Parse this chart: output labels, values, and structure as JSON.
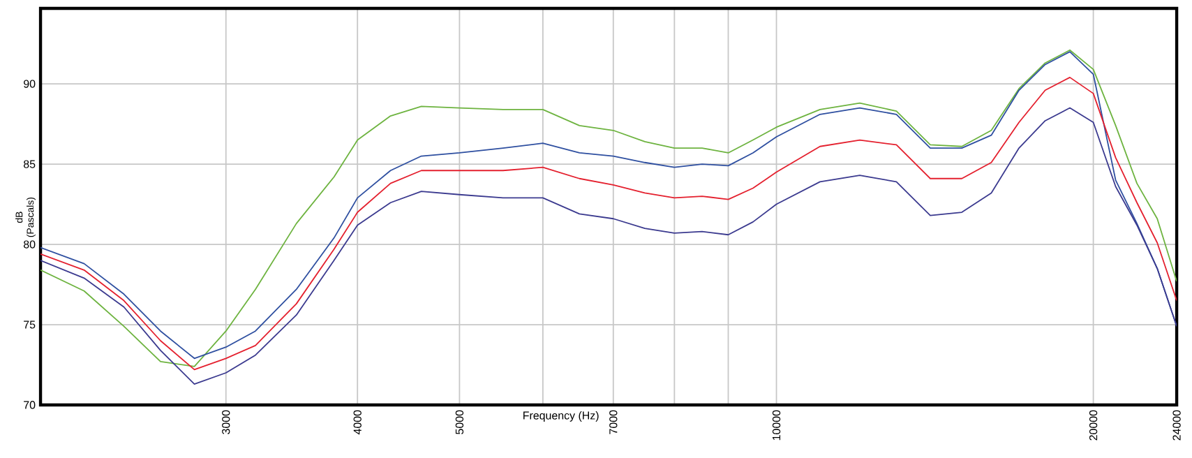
{
  "chart_data": {
    "type": "line",
    "xlabel": "Frequency (Hz)",
    "ylabel": "dB (Pascals)",
    "log": "x",
    "x": [
      2000,
      2200,
      2400,
      2600,
      2800,
      3000,
      3200,
      3500,
      3800,
      4000,
      4300,
      4600,
      5000,
      5500,
      6000,
      6500,
      7000,
      7500,
      8000,
      8500,
      9000,
      9500,
      10000,
      11000,
      12000,
      13000,
      14000,
      15000,
      16000,
      17000,
      18000,
      19000,
      20000,
      21000,
      22000,
      23000,
      24000
    ],
    "series": [
      {
        "color": "#6db33f",
        "values": [
          78.4,
          77.1,
          74.9,
          72.7,
          72.4,
          74.6,
          77.2,
          81.3,
          84.2,
          86.5,
          88.0,
          88.6,
          88.5,
          88.4,
          88.4,
          87.4,
          87.1,
          86.4,
          86.0,
          86.0,
          85.7,
          86.5,
          87.3,
          88.4,
          88.8,
          88.3,
          86.2,
          86.1,
          87.1,
          89.7,
          91.3,
          92.1,
          90.9,
          87.4,
          83.8,
          81.6,
          77.7
        ]
      },
      {
        "color": "#2e4fa0",
        "values": [
          79.8,
          78.8,
          76.9,
          74.6,
          72.9,
          73.6,
          74.6,
          77.2,
          80.4,
          82.9,
          84.6,
          85.5,
          85.7,
          86.0,
          86.3,
          85.7,
          85.5,
          85.1,
          84.8,
          85.0,
          84.9,
          85.7,
          86.7,
          88.1,
          88.5,
          88.1,
          86.0,
          86.0,
          86.8,
          89.6,
          91.2,
          92.0,
          90.6,
          84.0,
          81.3,
          78.5,
          74.9
        ]
      },
      {
        "color": "#e4202e",
        "values": [
          79.4,
          78.4,
          76.5,
          74.0,
          72.2,
          72.9,
          73.7,
          76.3,
          79.7,
          82.0,
          83.8,
          84.6,
          84.6,
          84.6,
          84.8,
          84.1,
          83.7,
          83.2,
          82.9,
          83.0,
          82.8,
          83.5,
          84.5,
          86.1,
          86.5,
          86.2,
          84.1,
          84.1,
          85.1,
          87.6,
          89.6,
          90.4,
          89.4,
          85.4,
          82.6,
          80.1,
          76.5
        ]
      },
      {
        "color": "#3b3a8f",
        "values": [
          79.0,
          77.9,
          76.1,
          73.4,
          71.3,
          72.0,
          73.1,
          75.6,
          79.0,
          81.2,
          82.6,
          83.3,
          83.1,
          82.9,
          82.9,
          81.9,
          81.6,
          81.0,
          80.7,
          80.8,
          80.6,
          81.4,
          82.5,
          83.9,
          84.3,
          83.9,
          81.8,
          82.0,
          83.2,
          86.0,
          87.7,
          88.5,
          87.6,
          83.6,
          81.2,
          78.5,
          74.9
        ]
      }
    ],
    "xlim": [
      2000,
      24000
    ],
    "ylim": [
      70,
      94.7
    ],
    "xticks": [
      3000,
      4000,
      5000,
      {
        "value": 6000,
        "label": null
      },
      7000,
      {
        "value": 8000,
        "label": null
      },
      {
        "value": 9000,
        "label": null
      },
      10000,
      20000,
      24000
    ],
    "yticks": [
      70,
      75,
      80,
      85,
      90
    ],
    "grid": true,
    "marker": "none",
    "line_style": "solid"
  }
}
